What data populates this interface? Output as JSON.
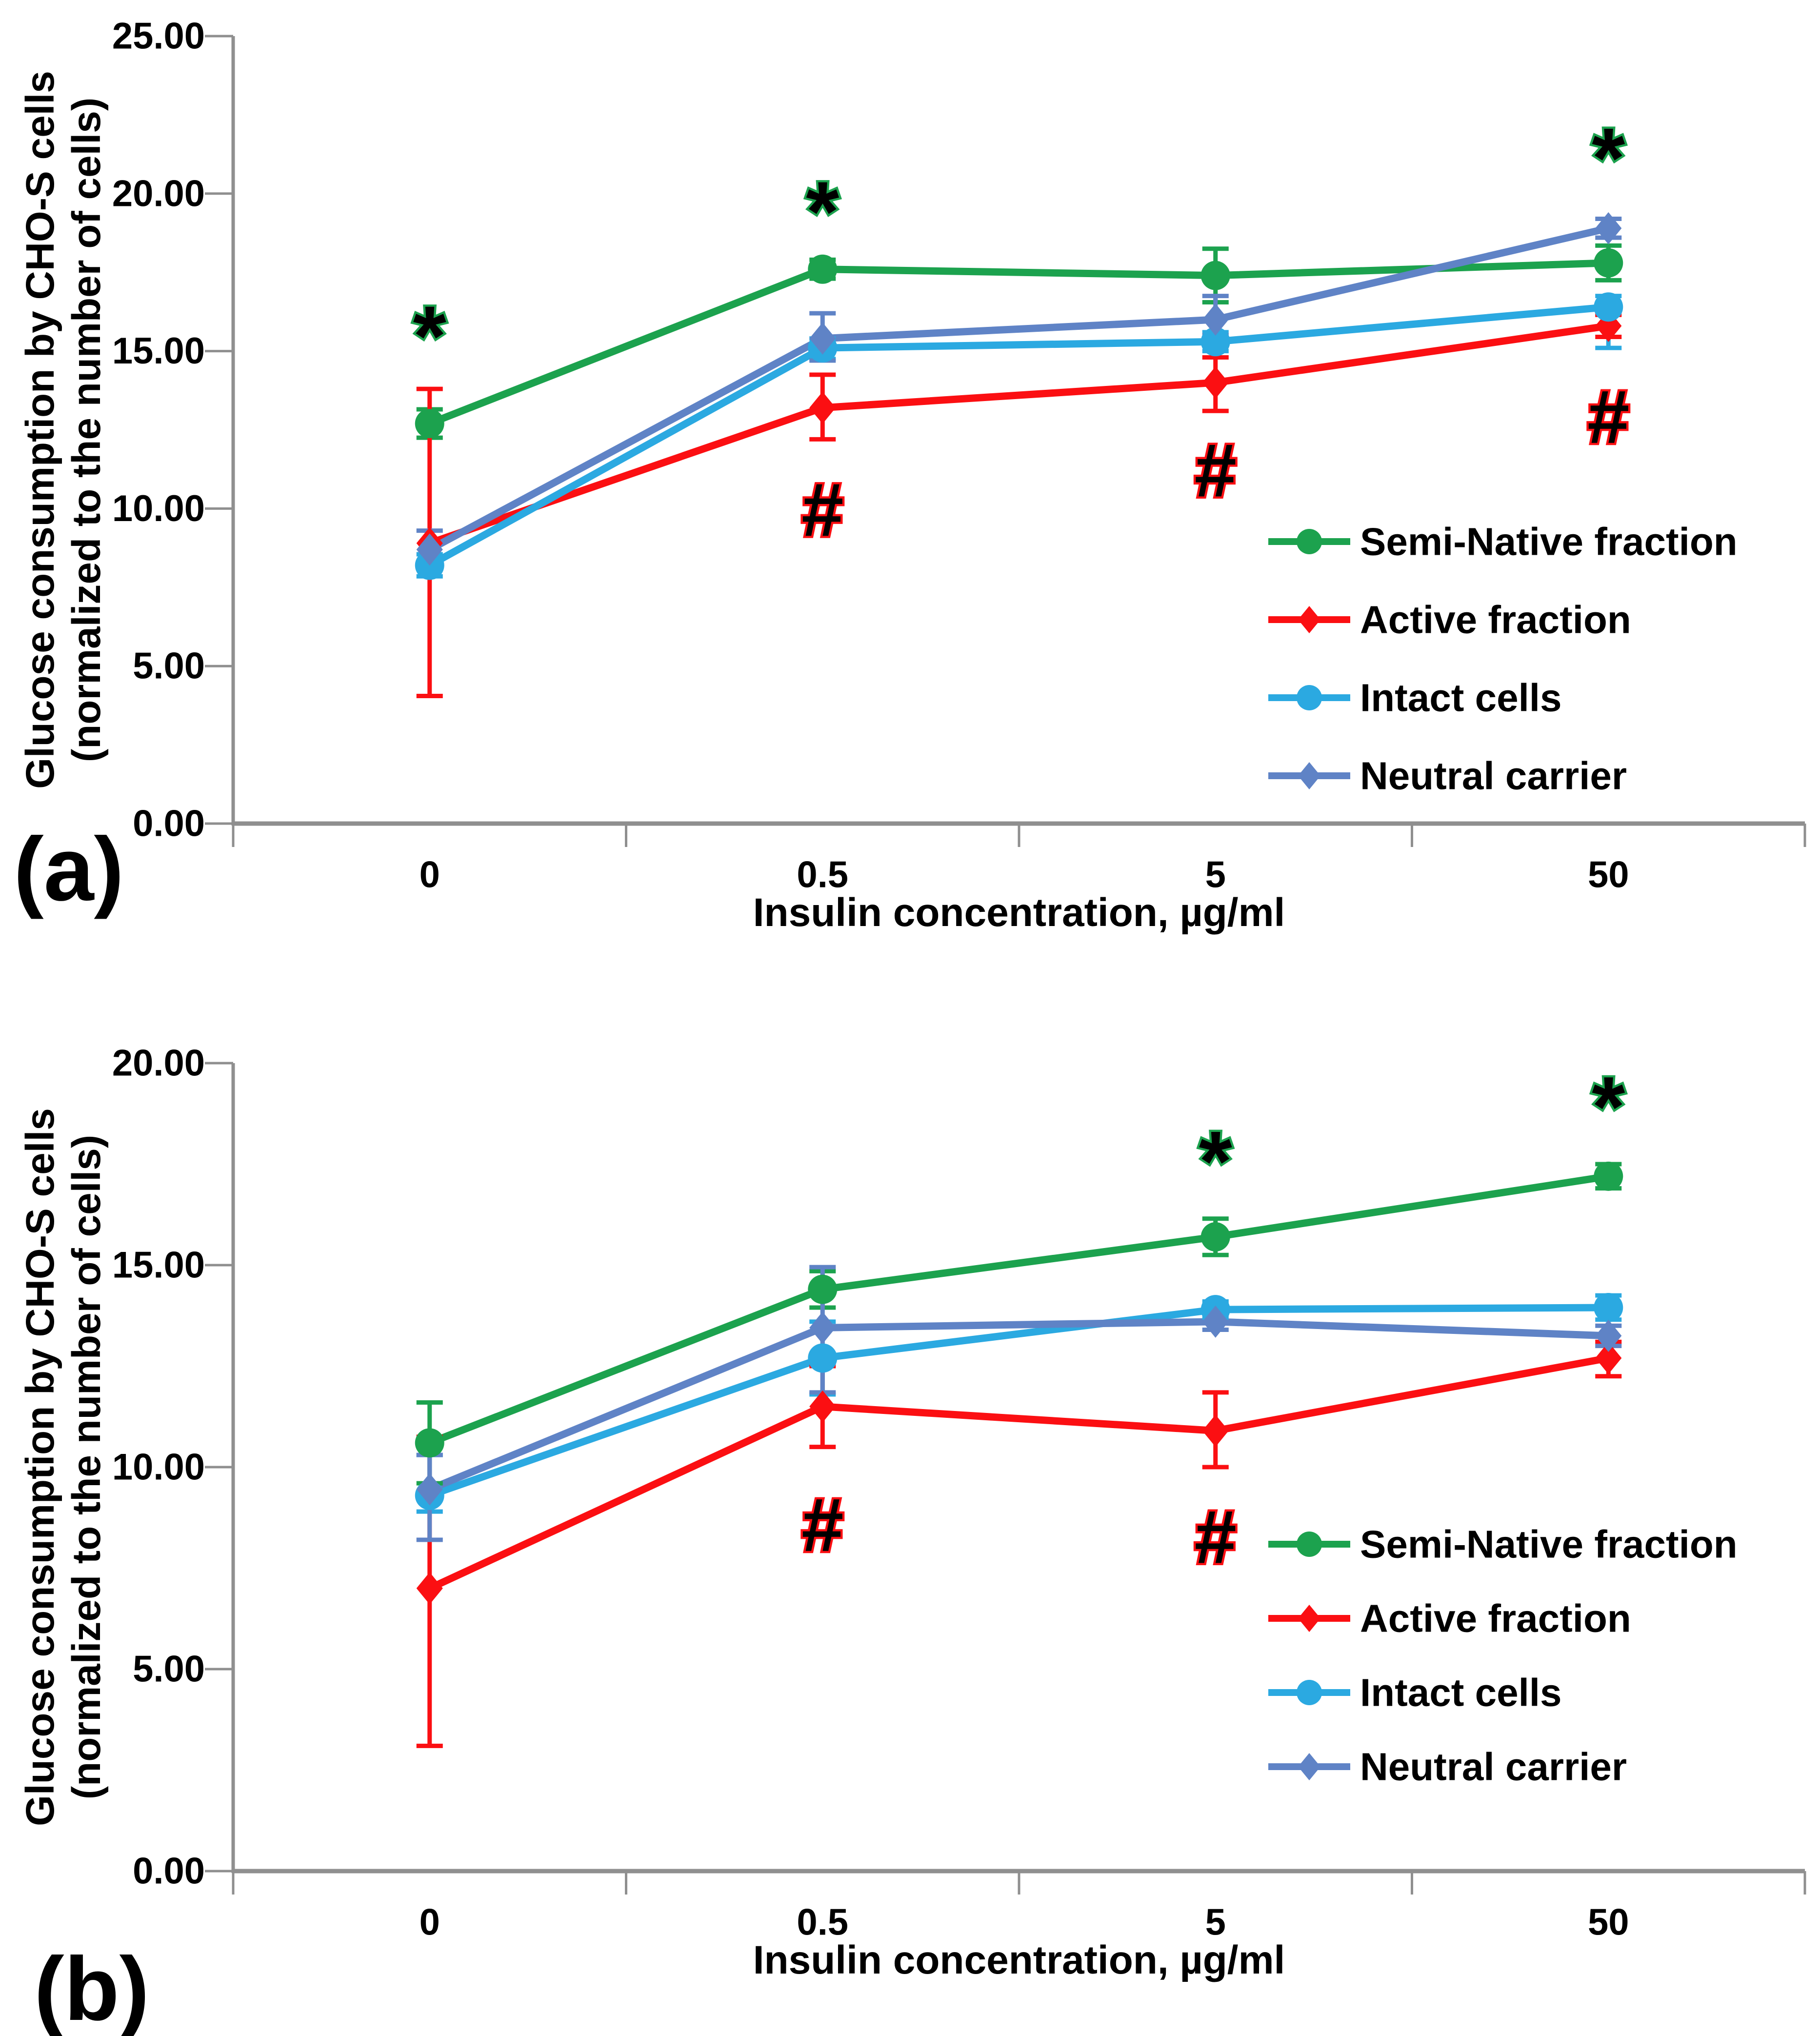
{
  "figure_title": "",
  "chart_data": [
    {
      "id": "a",
      "type": "line",
      "panel_label": "(a)",
      "xlabel": "Insulin concentration, µg/ml",
      "ylabel_line1": "Glucose consumption by CHO-S cells",
      "ylabel_line2": "(normalized to the number of cells)",
      "categories": [
        "0",
        "0.5",
        "5",
        "50"
      ],
      "ylim": [
        0,
        25
      ],
      "ytick_labels": [
        "0.00",
        "5.00",
        "10.00",
        "15.00",
        "20.00",
        "25.00"
      ],
      "grid": false,
      "legend_position": "inside-right",
      "axis_color": "#8f8f8f",
      "text_color": "#000000",
      "series": [
        {
          "name": "Semi-Native fraction",
          "color": "#1CA24E",
          "marker": "circle",
          "values": [
            12.7,
            17.6,
            17.4,
            17.8
          ],
          "err_up": [
            0.45,
            0.3,
            0.85,
            0.55
          ],
          "err_down": [
            0.45,
            0.3,
            0.85,
            0.55
          ]
        },
        {
          "name": "Active fraction",
          "color": "#FB0F12",
          "marker": "diamond",
          "values": [
            8.9,
            13.2,
            14.0,
            15.8
          ],
          "err_up": [
            4.9,
            1.05,
            0.8,
            0.35
          ],
          "err_down": [
            4.85,
            1.0,
            0.9,
            0.35
          ]
        },
        {
          "name": "Intact cells",
          "color": "#2BA9E1",
          "marker": "circle",
          "values": [
            8.2,
            15.1,
            15.3,
            16.4
          ],
          "err_up": [
            0.35,
            0.3,
            0.3,
            0.35
          ],
          "err_down": [
            0.35,
            0.35,
            0.3,
            1.3
          ]
        },
        {
          "name": "Neutral carrier",
          "color": "#5F83C6",
          "marker": "diamond",
          "values": [
            8.7,
            15.4,
            16.0,
            18.9
          ],
          "err_up": [
            0.6,
            0.8,
            0.75,
            0.3
          ],
          "err_down": [
            0.6,
            0.7,
            0.5,
            0.3
          ]
        }
      ],
      "annotations": [
        {
          "symbol": "*",
          "cat_index": 0,
          "value": 15.9,
          "outline": "#1CA24E"
        },
        {
          "symbol": "*",
          "cat_index": 1,
          "value": 19.85,
          "outline": "#1CA24E"
        },
        {
          "symbol": "*",
          "cat_index": 3,
          "value": 21.55,
          "outline": "#1CA24E"
        },
        {
          "symbol": "#",
          "cat_index": 1,
          "value": 10.0,
          "outline": "#FB0F12"
        },
        {
          "symbol": "#",
          "cat_index": 2,
          "value": 11.25,
          "outline": "#FB0F12"
        },
        {
          "symbol": "#",
          "cat_index": 3,
          "value": 12.95,
          "outline": "#FB0F12"
        }
      ]
    },
    {
      "id": "b",
      "type": "line",
      "panel_label": "(b)",
      "xlabel": "Insulin concentration, µg/ml",
      "ylabel_line1": "Glucose consumption by CHO-S cells",
      "ylabel_line2": "(normalized to the number of cells)",
      "categories": [
        "0",
        "0.5",
        "5",
        "50"
      ],
      "ylim": [
        0,
        20
      ],
      "ytick_labels": [
        "0.00",
        "5.00",
        "10.00",
        "15.00",
        "20.00"
      ],
      "grid": false,
      "legend_position": "inside-right",
      "axis_color": "#8f8f8f",
      "text_color": "#000000",
      "series": [
        {
          "name": "Semi-Native fraction",
          "color": "#1CA24E",
          "marker": "circle",
          "values": [
            10.6,
            14.4,
            15.7,
            17.2
          ],
          "err_up": [
            1.0,
            0.45,
            0.45,
            0.3
          ],
          "err_down": [
            1.0,
            0.45,
            0.45,
            0.3
          ]
        },
        {
          "name": "Active fraction",
          "color": "#FB0F12",
          "marker": "diamond",
          "values": [
            7.0,
            11.5,
            10.9,
            12.7
          ],
          "err_up": [
            3.75,
            1.0,
            0.95,
            0.4
          ],
          "err_down": [
            3.9,
            1.0,
            0.9,
            0.45
          ]
        },
        {
          "name": "Intact cells",
          "color": "#2BA9E1",
          "marker": "circle",
          "values": [
            9.3,
            12.7,
            13.9,
            13.95
          ],
          "err_up": [
            1.0,
            0.9,
            0.2,
            0.3
          ],
          "err_down": [
            0.4,
            0.9,
            0.2,
            0.3
          ]
        },
        {
          "name": "Neutral carrier",
          "color": "#5F83C6",
          "marker": "diamond",
          "values": [
            9.45,
            13.45,
            13.6,
            13.25
          ],
          "err_up": [
            0.85,
            1.5,
            0.2,
            0.25
          ],
          "err_down": [
            1.25,
            1.6,
            0.2,
            0.25
          ]
        }
      ],
      "annotations": [
        {
          "symbol": "*",
          "cat_index": 2,
          "value": 17.9,
          "outline": "#1CA24E"
        },
        {
          "symbol": "*",
          "cat_index": 3,
          "value": 19.25,
          "outline": "#1CA24E"
        },
        {
          "symbol": "#",
          "cat_index": 1,
          "value": 8.6,
          "outline": "#FB0F12"
        },
        {
          "symbol": "#",
          "cat_index": 2,
          "value": 8.3,
          "outline": "#FB0F12"
        }
      ]
    }
  ]
}
